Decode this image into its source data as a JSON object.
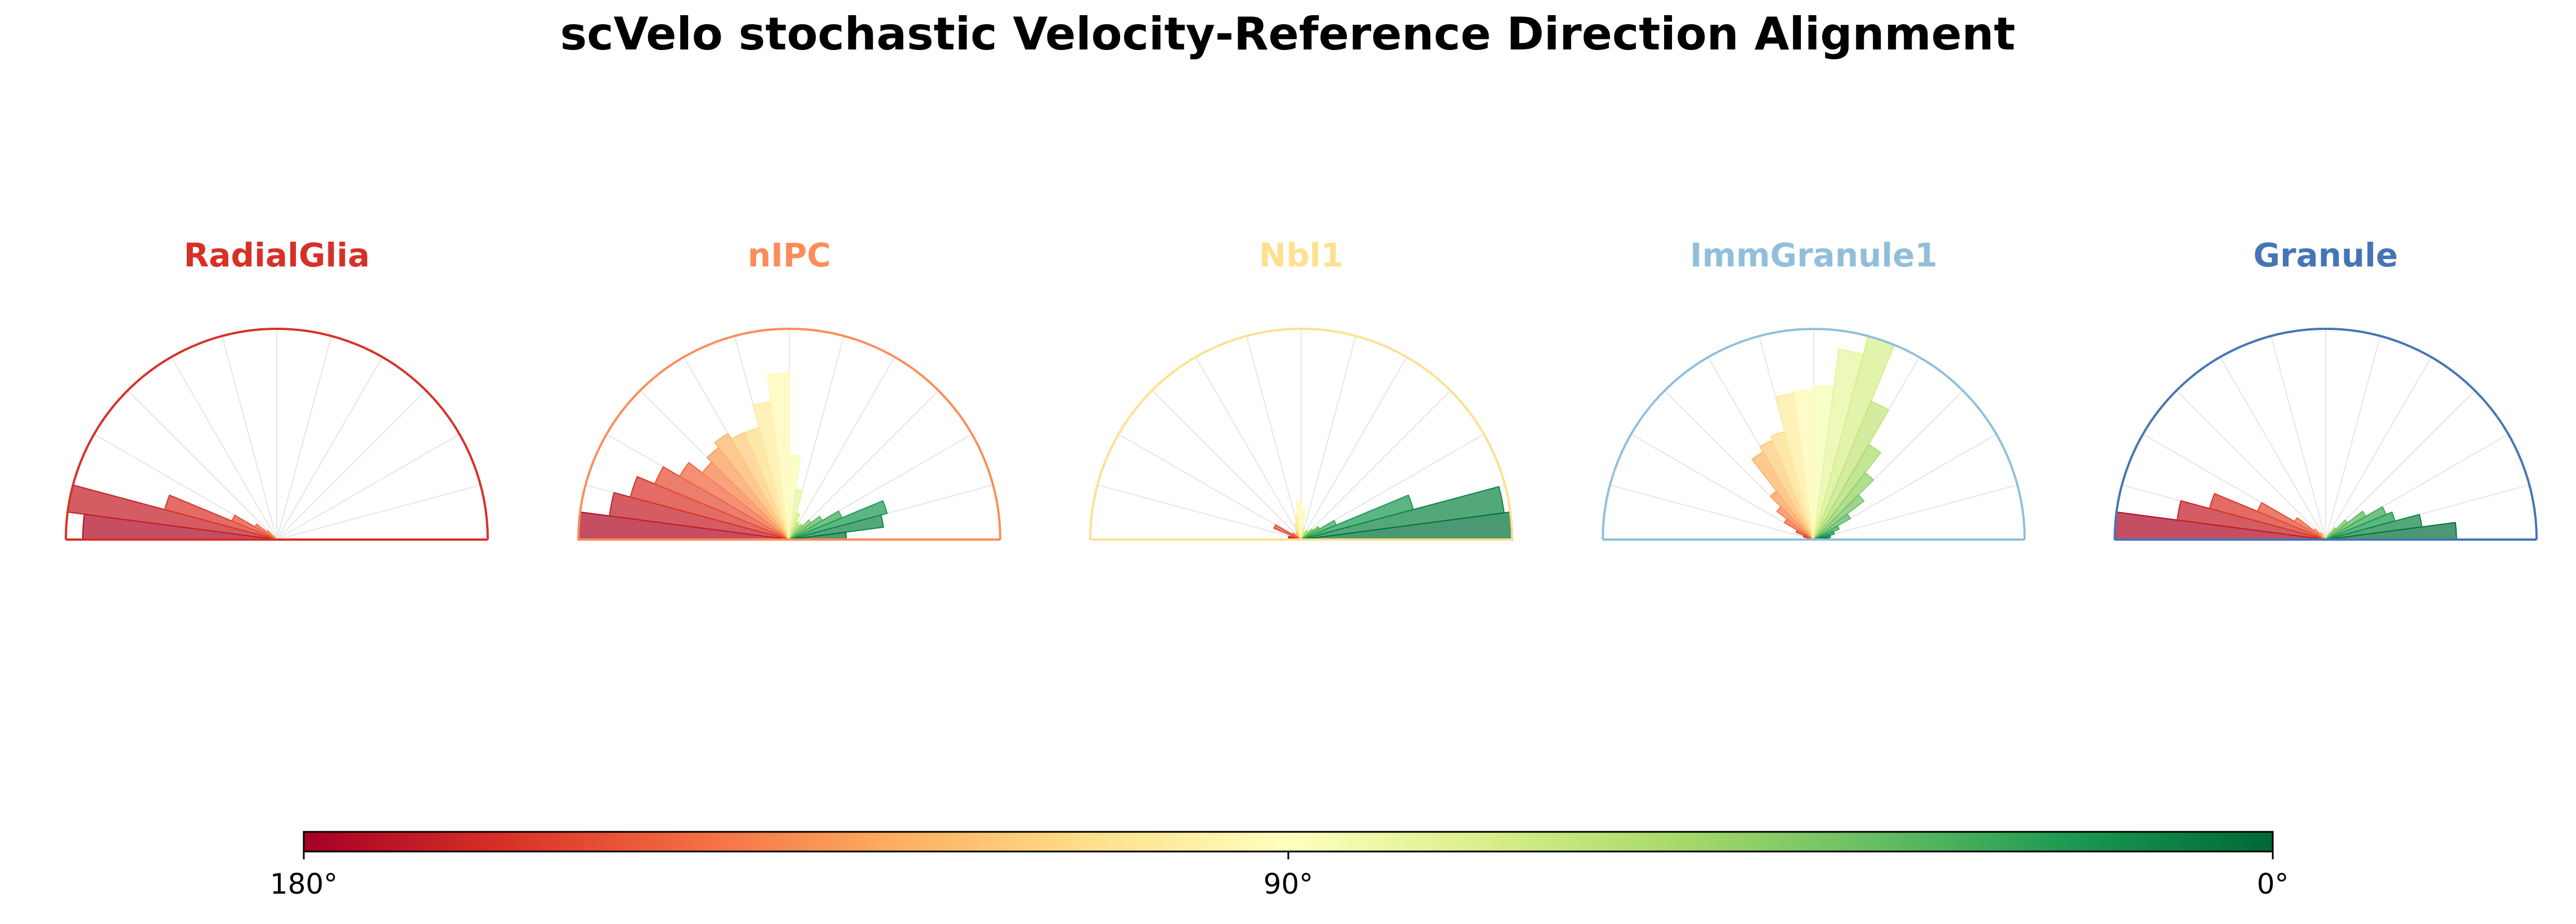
{
  "chart_data": {
    "type": "polar-histogram",
    "title": "scVelo stochastic Velocity-Reference Direction Alignment",
    "bin_width_deg": 7.5,
    "radial_max": 1.0,
    "colorbar": {
      "colormap": "RdYlGn",
      "range_deg": [
        180,
        0
      ],
      "tick_labels": [
        "180°",
        "90°",
        "0°"
      ],
      "tick_values_deg": [
        180,
        90,
        0
      ]
    },
    "panels": [
      {
        "name": "RadialGlia",
        "title_color": "#d73027",
        "outline_color": "#d73027",
        "bins": [
          {
            "angle_deg": 176.25,
            "value": 0.92
          },
          {
            "angle_deg": 168.75,
            "value": 1.0
          },
          {
            "angle_deg": 161.25,
            "value": 0.55
          },
          {
            "angle_deg": 153.75,
            "value": 0.23
          },
          {
            "angle_deg": 146.25,
            "value": 0.12
          },
          {
            "angle_deg": 138.75,
            "value": 0.06
          }
        ]
      },
      {
        "name": "nIPC",
        "title_color": "#fc8d59",
        "outline_color": "#fc8d59",
        "bins": [
          {
            "angle_deg": 176.25,
            "value": 1.0
          },
          {
            "angle_deg": 168.75,
            "value": 0.86
          },
          {
            "angle_deg": 161.25,
            "value": 0.78
          },
          {
            "angle_deg": 153.75,
            "value": 0.69
          },
          {
            "angle_deg": 146.25,
            "value": 0.6
          },
          {
            "angle_deg": 138.75,
            "value": 0.52
          },
          {
            "angle_deg": 131.25,
            "value": 0.55
          },
          {
            "angle_deg": 123.75,
            "value": 0.58
          },
          {
            "angle_deg": 116.25,
            "value": 0.55
          },
          {
            "angle_deg": 108.75,
            "value": 0.55
          },
          {
            "angle_deg": 101.25,
            "value": 0.66
          },
          {
            "angle_deg": 93.75,
            "value": 0.79
          },
          {
            "angle_deg": 86.25,
            "value": 0.4
          },
          {
            "angle_deg": 78.75,
            "value": 0.24
          },
          {
            "angle_deg": 71.25,
            "value": 0.13
          },
          {
            "angle_deg": 63.75,
            "value": 0.09
          },
          {
            "angle_deg": 56.25,
            "value": 0.08
          },
          {
            "angle_deg": 48.75,
            "value": 0.09
          },
          {
            "angle_deg": 41.25,
            "value": 0.13
          },
          {
            "angle_deg": 33.75,
            "value": 0.18
          },
          {
            "angle_deg": 26.25,
            "value": 0.27
          },
          {
            "angle_deg": 18.75,
            "value": 0.48
          },
          {
            "angle_deg": 11.25,
            "value": 0.45
          },
          {
            "angle_deg": 3.75,
            "value": 0.27
          }
        ]
      },
      {
        "name": "Nbl1",
        "title_color": "#fee090",
        "outline_color": "#fee090",
        "bins": [
          {
            "angle_deg": 176.25,
            "value": 0.03
          },
          {
            "angle_deg": 168.75,
            "value": 0.06
          },
          {
            "angle_deg": 161.25,
            "value": 0.04
          },
          {
            "angle_deg": 153.75,
            "value": 0.14
          },
          {
            "angle_deg": 146.25,
            "value": 0.05
          },
          {
            "angle_deg": 123.75,
            "value": 0.04
          },
          {
            "angle_deg": 108.75,
            "value": 0.08
          },
          {
            "angle_deg": 101.25,
            "value": 0.12
          },
          {
            "angle_deg": 93.75,
            "value": 0.18
          },
          {
            "angle_deg": 86.25,
            "value": 0.14
          },
          {
            "angle_deg": 78.75,
            "value": 0.06
          },
          {
            "angle_deg": 71.25,
            "value": 0.04
          },
          {
            "angle_deg": 56.25,
            "value": 0.05
          },
          {
            "angle_deg": 41.25,
            "value": 0.07
          },
          {
            "angle_deg": 33.75,
            "value": 0.1
          },
          {
            "angle_deg": 26.25,
            "value": 0.18
          },
          {
            "angle_deg": 18.75,
            "value": 0.55
          },
          {
            "angle_deg": 11.25,
            "value": 0.97
          },
          {
            "angle_deg": 3.75,
            "value": 1.0
          }
        ]
      },
      {
        "name": "ImmGranule1",
        "title_color": "#91bfdb",
        "outline_color": "#91bfdb",
        "bins": [
          {
            "angle_deg": 161.25,
            "value": 0.05
          },
          {
            "angle_deg": 153.75,
            "value": 0.09
          },
          {
            "angle_deg": 146.25,
            "value": 0.16
          },
          {
            "angle_deg": 138.75,
            "value": 0.22
          },
          {
            "angle_deg": 131.25,
            "value": 0.29
          },
          {
            "angle_deg": 123.75,
            "value": 0.48
          },
          {
            "angle_deg": 116.25,
            "value": 0.51
          },
          {
            "angle_deg": 108.75,
            "value": 0.53
          },
          {
            "angle_deg": 101.25,
            "value": 0.7
          },
          {
            "angle_deg": 93.75,
            "value": 0.71
          },
          {
            "angle_deg": 86.25,
            "value": 0.73
          },
          {
            "angle_deg": 78.75,
            "value": 0.91
          },
          {
            "angle_deg": 71.25,
            "value": 1.0
          },
          {
            "angle_deg": 63.75,
            "value": 0.71
          },
          {
            "angle_deg": 56.25,
            "value": 0.52
          },
          {
            "angle_deg": 48.75,
            "value": 0.4
          },
          {
            "angle_deg": 41.25,
            "value": 0.3
          },
          {
            "angle_deg": 33.75,
            "value": 0.2
          },
          {
            "angle_deg": 26.25,
            "value": 0.13
          },
          {
            "angle_deg": 18.75,
            "value": 0.1
          },
          {
            "angle_deg": 11.25,
            "value": 0.08
          },
          {
            "angle_deg": 3.75,
            "value": 0.07
          }
        ]
      },
      {
        "name": "Granule",
        "title_color": "#4575b4",
        "outline_color": "#4575b4",
        "bins": [
          {
            "angle_deg": 176.25,
            "value": 1.0
          },
          {
            "angle_deg": 168.75,
            "value": 0.71
          },
          {
            "angle_deg": 161.25,
            "value": 0.57
          },
          {
            "angle_deg": 153.75,
            "value": 0.35
          },
          {
            "angle_deg": 146.25,
            "value": 0.17
          },
          {
            "angle_deg": 138.75,
            "value": 0.07
          },
          {
            "angle_deg": 131.25,
            "value": 0.04
          },
          {
            "angle_deg": 123.75,
            "value": 0.03
          },
          {
            "angle_deg": 56.25,
            "value": 0.04
          },
          {
            "angle_deg": 48.75,
            "value": 0.07
          },
          {
            "angle_deg": 41.25,
            "value": 0.13
          },
          {
            "angle_deg": 33.75,
            "value": 0.22
          },
          {
            "angle_deg": 26.25,
            "value": 0.31
          },
          {
            "angle_deg": 18.75,
            "value": 0.34
          },
          {
            "angle_deg": 11.25,
            "value": 0.46
          },
          {
            "angle_deg": 3.75,
            "value": 0.62
          }
        ]
      }
    ]
  }
}
